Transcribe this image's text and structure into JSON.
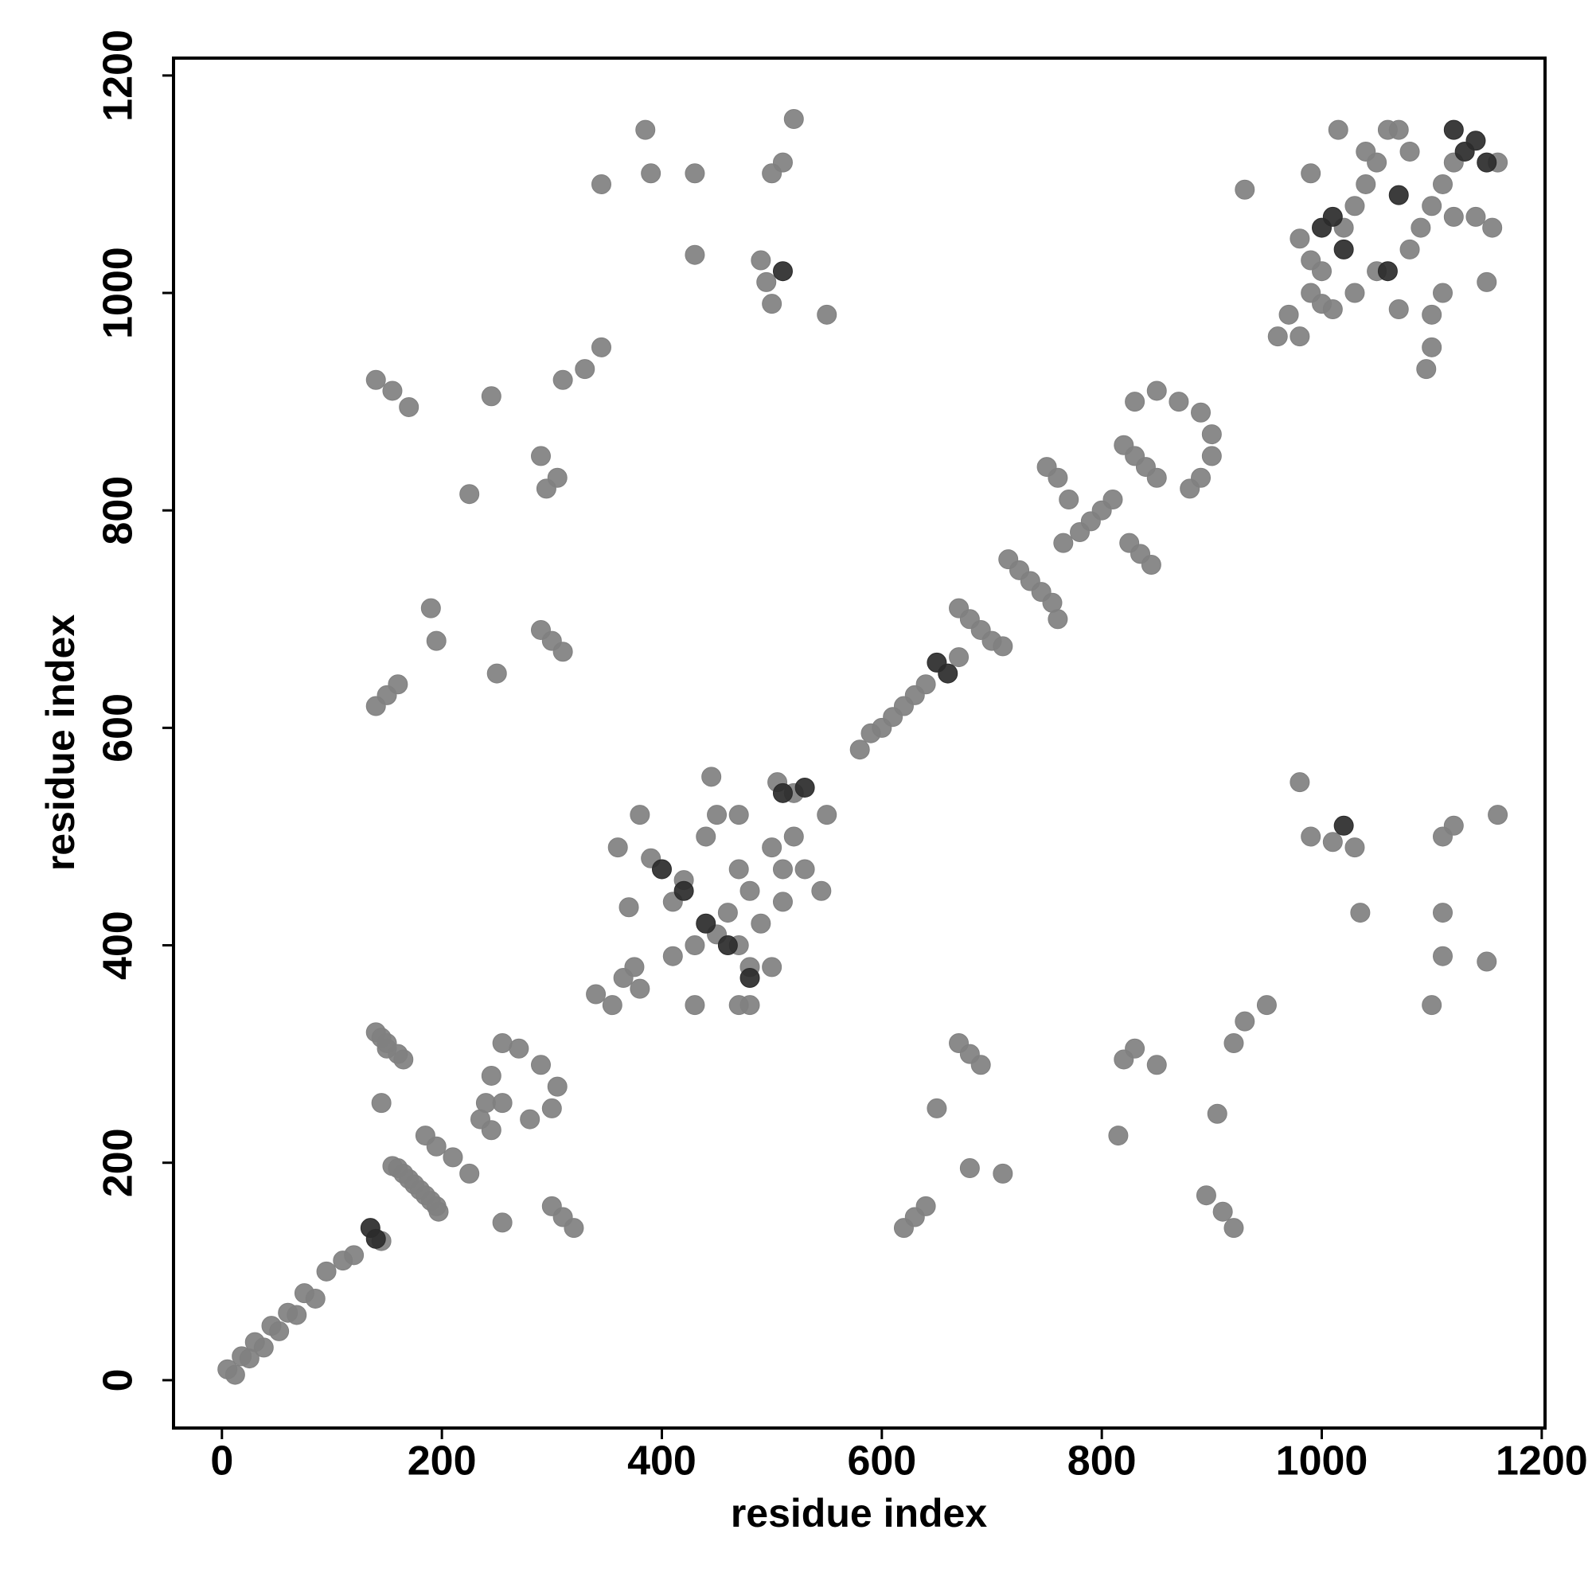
{
  "chart_data": {
    "type": "scatter",
    "x_label": "residue index",
    "y_label": "residue index",
    "xlim": [
      -44,
      1203
    ],
    "ylim": [
      -44,
      1216
    ],
    "xticks": [
      0,
      200,
      400,
      600,
      800,
      1000,
      1200
    ],
    "yticks": [
      0,
      200,
      400,
      600,
      800,
      1000,
      1200
    ],
    "grid": false,
    "series": [
      {
        "color": "#808080",
        "x": [
          5,
          12,
          18,
          25,
          30,
          38,
          45,
          52,
          60,
          68,
          75,
          85,
          95,
          110,
          120,
          145,
          160,
          170,
          180,
          190,
          197,
          185,
          195,
          210,
          225,
          235,
          245,
          240,
          255,
          270,
          290,
          305,
          300,
          280,
          255,
          245,
          340,
          355,
          365,
          380,
          375,
          390,
          410,
          430,
          450,
          460,
          470,
          480,
          410,
          420,
          440,
          450,
          470,
          480,
          500,
          510,
          520,
          550,
          520,
          505,
          530,
          545,
          490,
          510,
          445,
          470,
          500,
          470,
          430,
          480,
          380,
          370,
          360,
          580,
          590,
          600,
          610,
          620,
          630,
          640,
          670,
          670,
          680,
          690,
          700,
          710,
          715,
          725,
          735,
          745,
          755,
          760,
          765,
          780,
          790,
          800,
          810,
          750,
          760,
          770,
          820,
          830,
          840,
          850,
          825,
          835,
          845,
          830,
          850,
          870,
          890,
          900,
          900,
          890,
          880,
          960,
          970,
          980,
          990,
          1000,
          1020,
          1030,
          1040,
          1050,
          980,
          990,
          1000,
          1010,
          1030,
          1050,
          1070,
          1080,
          1090,
          1100,
          1110,
          1120,
          1160,
          1155,
          1140,
          1120,
          1110,
          1100,
          1100,
          1080,
          1070,
          1060,
          1040,
          990,
          1015,
          1150,
          1095,
          930,
          140,
          150,
          160,
          190,
          195,
          140,
          155,
          170,
          225,
          250,
          245,
          290,
          300,
          310,
          295,
          305,
          290,
          310,
          330,
          345,
          345,
          385,
          390,
          430,
          430,
          490,
          495,
          500,
          500,
          510,
          520,
          550,
          620,
          630,
          640,
          710,
          680,
          920,
          910,
          895,
          815,
          650,
          905,
          690,
          680,
          670,
          820,
          830,
          850,
          920,
          930,
          950,
          1100,
          1150,
          1110,
          1110,
          1035,
          1030,
          1010,
          990,
          1110,
          1120,
          1160,
          980,
          145,
          150,
          165,
          255,
          145,
          320,
          310,
          300,
          140,
          150,
          160,
          195,
          185,
          175,
          165,
          155
        ],
        "y": [
          10,
          5,
          22,
          20,
          35,
          30,
          50,
          45,
          62,
          60,
          80,
          75,
          100,
          110,
          115,
          128,
          195,
          185,
          175,
          165,
          155,
          225,
          215,
          205,
          190,
          240,
          230,
          255,
          310,
          305,
          290,
          270,
          250,
          240,
          255,
          280,
          355,
          345,
          370,
          360,
          380,
          480,
          440,
          400,
          410,
          430,
          400,
          380,
          390,
          460,
          500,
          520,
          470,
          450,
          490,
          470,
          500,
          520,
          540,
          550,
          470,
          450,
          420,
          440,
          555,
          520,
          380,
          345,
          345,
          345,
          520,
          435,
          490,
          580,
          595,
          600,
          610,
          620,
          630,
          640,
          665,
          710,
          700,
          690,
          680,
          675,
          755,
          745,
          735,
          725,
          715,
          700,
          770,
          780,
          790,
          800,
          810,
          840,
          830,
          810,
          860,
          850,
          840,
          830,
          770,
          760,
          750,
          900,
          910,
          900,
          890,
          870,
          850,
          830,
          820,
          960,
          980,
          960,
          1000,
          1020,
          1060,
          1080,
          1100,
          1120,
          1050,
          1030,
          990,
          985,
          1000,
          1020,
          985,
          1040,
          1060,
          1080,
          1100,
          1120,
          1120,
          1060,
          1070,
          1070,
          1000,
          980,
          950,
          1130,
          1150,
          1150,
          1130,
          1110,
          1150,
          1010,
          930,
          1095,
          620,
          630,
          640,
          710,
          680,
          920,
          910,
          895,
          815,
          650,
          905,
          690,
          680,
          670,
          820,
          830,
          850,
          920,
          930,
          950,
          1100,
          1150,
          1110,
          1110,
          1035,
          1030,
          1010,
          990,
          1110,
          1120,
          1160,
          980,
          140,
          150,
          160,
          190,
          195,
          140,
          155,
          170,
          225,
          250,
          245,
          290,
          300,
          310,
          295,
          305,
          290,
          310,
          330,
          345,
          345,
          385,
          390,
          430,
          430,
          490,
          495,
          500,
          500,
          510,
          520,
          550,
          315,
          305,
          295,
          145,
          255,
          140,
          150,
          160,
          320,
          310,
          300,
          160,
          170,
          180,
          190,
          197
        ]
      },
      {
        "color": "#2b2b2b",
        "x": [
          135,
          140,
          400,
          420,
          440,
          460,
          480,
          510,
          530,
          650,
          660,
          1120,
          1130,
          1140,
          1150,
          1010,
          1020,
          1060,
          1070,
          1000,
          510,
          1020
        ],
        "y": [
          140,
          130,
          470,
          450,
          420,
          400,
          370,
          540,
          545,
          660,
          650,
          1150,
          1130,
          1140,
          1120,
          1070,
          1040,
          1020,
          1090,
          1060,
          1020,
          510
        ]
      }
    ]
  }
}
